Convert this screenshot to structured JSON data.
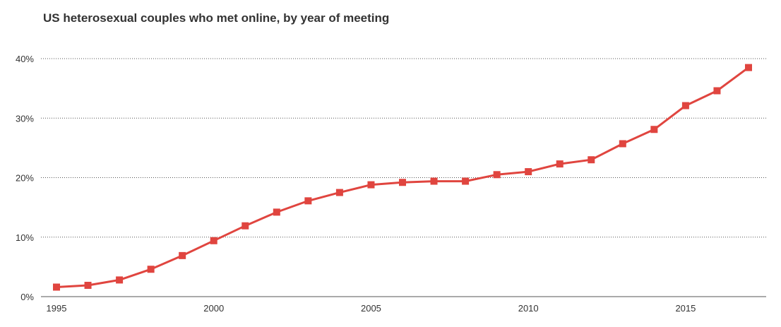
{
  "chart_data": {
    "type": "line",
    "title": "US heterosexual couples who met online, by year of meeting",
    "xlabel": "",
    "ylabel": "",
    "x": [
      1995,
      1996,
      1997,
      1998,
      1999,
      2000,
      2001,
      2002,
      2003,
      2004,
      2005,
      2006,
      2007,
      2008,
      2009,
      2010,
      2011,
      2012,
      2013,
      2014,
      2015,
      2016,
      2017
    ],
    "series": [
      {
        "color": "#e0453f",
        "marker": "square",
        "values": [
          1.6,
          1.9,
          2.8,
          4.6,
          6.9,
          9.4,
          11.9,
          14.2,
          16.1,
          17.5,
          18.8,
          19.2,
          19.4,
          19.4,
          20.5,
          21.0,
          22.3,
          23.0,
          25.7,
          28.1,
          32.1,
          34.6,
          38.5
        ]
      }
    ],
    "xlim": [
      1995,
      2017
    ],
    "ylim": [
      0,
      40
    ],
    "x_ticks": [
      1995,
      2000,
      2005,
      2010,
      2015
    ],
    "x_tick_labels": [
      "1995",
      "2000",
      "2005",
      "2010",
      "2015"
    ],
    "y_ticks": [
      0,
      10,
      20,
      30,
      40
    ],
    "y_tick_labels": [
      "0%",
      "10%",
      "20%",
      "30%",
      "40%"
    ],
    "grid": "horizontal-dotted",
    "legend": "none"
  }
}
